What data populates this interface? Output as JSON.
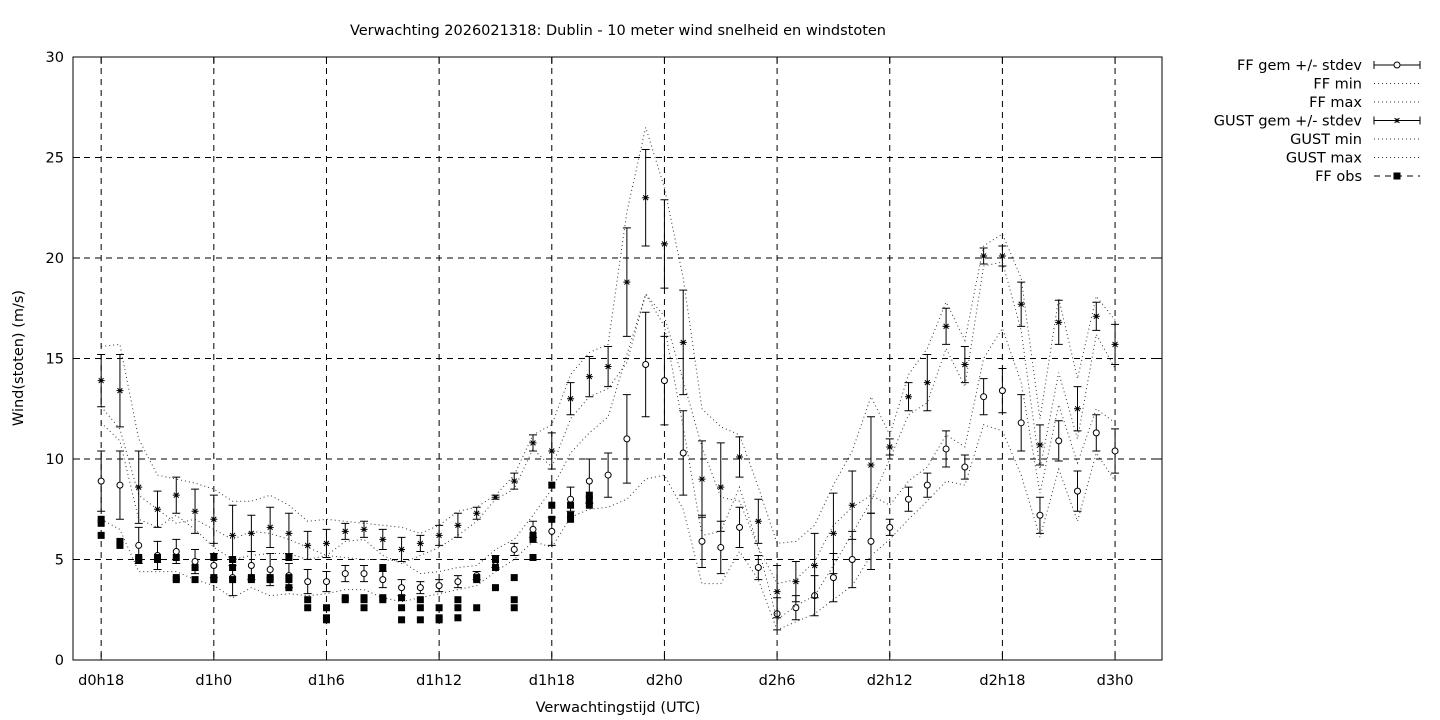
{
  "chart_data": {
    "type": "scatter",
    "title": "Verwachting 2026021318: Dublin - 10 meter wind snelheid en windstoten",
    "xlabel": "Verwachtingstijd (UTC)",
    "ylabel": "Wind(stoten) (m/s)",
    "xlim": [
      -1.5,
      56.5
    ],
    "ylim": [
      0,
      30
    ],
    "yticks": [
      0,
      5,
      10,
      15,
      20,
      25,
      30
    ],
    "xticks": [
      {
        "x": 0,
        "label": "d0h18"
      },
      {
        "x": 6,
        "label": "d1h0"
      },
      {
        "x": 12,
        "label": "d1h6"
      },
      {
        "x": 18,
        "label": "d1h12"
      },
      {
        "x": 24,
        "label": "d1h18"
      },
      {
        "x": 30,
        "label": "d2h0"
      },
      {
        "x": 36,
        "label": "d2h6"
      },
      {
        "x": 42,
        "label": "d2h12"
      },
      {
        "x": 48,
        "label": "d2h18"
      },
      {
        "x": 54,
        "label": "d3h0"
      }
    ],
    "grid": true,
    "legend_position": "outside-right",
    "x_hours": [
      0,
      1,
      2,
      3,
      4,
      5,
      6,
      7,
      8,
      9,
      10,
      11,
      12,
      13,
      14,
      15,
      16,
      17,
      18,
      19,
      20,
      21,
      22,
      23,
      24,
      25,
      26,
      27,
      28,
      29,
      30,
      31,
      32,
      33,
      34,
      35,
      36,
      37,
      38,
      39,
      40,
      41,
      42,
      43,
      44,
      45,
      46,
      47,
      48,
      49,
      50,
      51,
      52,
      53,
      54
    ],
    "series": [
      {
        "name": "FF gem +/- stdev",
        "style": "errorbars-open-circle",
        "mean": [
          8.9,
          8.7,
          5.7,
          5.2,
          5.4,
          4.9,
          4.7,
          4.1,
          4.7,
          4.5,
          4.2,
          3.9,
          3.9,
          4.3,
          4.3,
          4.0,
          3.6,
          3.6,
          3.7,
          3.9,
          4.2,
          4.9,
          5.5,
          6.5,
          6.4,
          8.0,
          8.9,
          9.2,
          11.0,
          14.7,
          13.9,
          10.3,
          5.9,
          5.6,
          6.6,
          4.6,
          2.3,
          2.6,
          3.2,
          4.1,
          5.0,
          5.9,
          6.6,
          8.0,
          8.7,
          10.5,
          9.6,
          13.1,
          13.4,
          11.8,
          7.2,
          10.9,
          8.4,
          11.3,
          10.4
        ],
        "stdev": [
          1.5,
          1.7,
          0.9,
          0.7,
          0.6,
          0.6,
          0.6,
          0.9,
          0.7,
          0.8,
          0.6,
          0.6,
          0.5,
          0.4,
          0.4,
          0.4,
          0.4,
          0.3,
          0.3,
          0.3,
          0.2,
          0.3,
          0.3,
          0.4,
          0.7,
          0.6,
          1.1,
          1.1,
          2.2,
          2.6,
          2.2,
          2.1,
          1.3,
          1.3,
          1.0,
          0.6,
          0.8,
          0.6,
          1.0,
          1.2,
          1.4,
          1.4,
          0.4,
          0.6,
          0.6,
          0.9,
          0.6,
          0.9,
          1.1,
          1.4,
          0.9,
          1.0,
          1.0,
          0.9,
          1.1
        ]
      },
      {
        "name": "FF min",
        "style": "dotted-line",
        "values": [
          7.0,
          6.5,
          4.4,
          4.4,
          4.4,
          4.0,
          3.7,
          3.1,
          3.6,
          3.2,
          3.3,
          3.2,
          3.3,
          3.5,
          3.5,
          3.1,
          2.9,
          3.1,
          3.3,
          3.5,
          3.7,
          4.4,
          5.0,
          5.9,
          5.6,
          7.1,
          7.5,
          7.6,
          8.0,
          9.0,
          9.2,
          7.5,
          3.8,
          3.8,
          5.4,
          4.0,
          1.5,
          1.9,
          2.3,
          3.0,
          3.7,
          5.2,
          6.0,
          7.0,
          7.9,
          8.9,
          8.7,
          11.7,
          11.4,
          9.2,
          6.1,
          9.5,
          6.9,
          10.3,
          8.9
        ]
      },
      {
        "name": "FF max",
        "style": "dotted-line",
        "values": [
          12.6,
          11.5,
          8.2,
          7.5,
          6.8,
          7.0,
          6.5,
          6.0,
          6.4,
          6.3,
          6.0,
          5.6,
          5.2,
          5.1,
          5.0,
          5.0,
          4.9,
          4.3,
          4.4,
          4.6,
          4.7,
          5.5,
          6.0,
          7.2,
          8.5,
          10.3,
          11.3,
          12.1,
          15.2,
          18.2,
          17.1,
          13.9,
          10.6,
          8.1,
          7.9,
          5.6,
          3.8,
          4.0,
          4.9,
          6.7,
          7.6,
          8.2,
          7.7,
          8.9,
          9.6,
          11.2,
          10.6,
          15.0,
          16.5,
          13.8,
          8.3,
          12.7,
          9.8,
          12.5,
          11.8
        ]
      },
      {
        "name": "GUST gem +/- stdev",
        "style": "errorbars-star",
        "mean": [
          13.9,
          13.4,
          8.6,
          7.5,
          8.2,
          7.4,
          7.0,
          6.2,
          6.3,
          6.6,
          6.3,
          5.7,
          5.8,
          6.4,
          6.5,
          6.0,
          5.5,
          5.8,
          6.2,
          6.7,
          7.3,
          8.1,
          8.9,
          10.8,
          10.4,
          13.0,
          14.1,
          14.6,
          18.8,
          23.0,
          20.7,
          15.8,
          9.0,
          8.6,
          10.1,
          6.9,
          3.4,
          3.9,
          4.7,
          6.3,
          7.7,
          9.7,
          10.6,
          13.1,
          13.8,
          16.6,
          14.7,
          20.1,
          20.1,
          17.7,
          10.7,
          16.8,
          12.5,
          17.1,
          15.7
        ],
        "stdev": [
          1.3,
          1.8,
          1.8,
          0.9,
          0.9,
          1.1,
          1.2,
          1.5,
          0.9,
          1.0,
          1.0,
          0.7,
          0.7,
          0.4,
          0.4,
          0.5,
          0.6,
          0.4,
          0.5,
          0.6,
          0.3,
          0.1,
          0.4,
          0.4,
          0.9,
          0.8,
          1.0,
          1.0,
          2.7,
          2.4,
          2.2,
          2.6,
          1.9,
          2.2,
          1.0,
          1.1,
          1.3,
          1.0,
          1.6,
          2.0,
          1.7,
          2.4,
          0.4,
          0.7,
          1.4,
          0.9,
          0.9,
          0.4,
          0.5,
          1.1,
          1.0,
          1.1,
          1.1,
          0.7,
          1.0
        ]
      },
      {
        "name": "GUST min",
        "style": "dotted-line",
        "values": [
          11.8,
          10.9,
          7.0,
          6.6,
          7.2,
          6.5,
          5.6,
          5.0,
          5.2,
          5.3,
          5.3,
          5.0,
          5.2,
          5.9,
          6.0,
          5.2,
          4.8,
          5.2,
          5.6,
          6.2,
          6.9,
          8.0,
          8.5,
          10.5,
          9.6,
          12.0,
          13.1,
          13.5,
          14.8,
          18.2,
          16.6,
          11.6,
          6.2,
          6.4,
          8.6,
          5.6,
          2.0,
          2.7,
          3.2,
          4.7,
          6.3,
          7.9,
          10.0,
          12.2,
          12.8,
          15.5,
          13.6,
          19.6,
          19.8,
          16.4,
          9.5,
          14.3,
          11.0,
          16.2,
          14.5
        ]
      },
      {
        "name": "GUST max",
        "style": "dotted-line",
        "values": [
          15.6,
          15.7,
          11.0,
          9.2,
          9.0,
          8.8,
          8.5,
          7.9,
          7.9,
          8.2,
          7.7,
          6.9,
          7.0,
          6.9,
          6.8,
          6.7,
          6.6,
          6.3,
          6.7,
          7.4,
          7.6,
          8.2,
          9.2,
          11.2,
          11.7,
          14.2,
          15.3,
          15.7,
          22.3,
          26.5,
          23.5,
          19.0,
          12.5,
          11.6,
          11.2,
          8.6,
          5.8,
          5.9,
          6.7,
          8.7,
          10.4,
          13.1,
          11.2,
          14.2,
          15.5,
          17.8,
          15.9,
          20.6,
          21.2,
          19.0,
          12.0,
          18.0,
          14.0,
          18.1,
          16.9
        ]
      },
      {
        "name": "FF obs",
        "style": "filled-squares",
        "points": [
          [
            0,
            6.2
          ],
          [
            0,
            6.8
          ],
          [
            0,
            7.0
          ],
          [
            1,
            5.7
          ],
          [
            1,
            5.9
          ],
          [
            2,
            5.0
          ],
          [
            2,
            5.1
          ],
          [
            3,
            5.0
          ],
          [
            3,
            5.1
          ],
          [
            4,
            4.0
          ],
          [
            4,
            4.1
          ],
          [
            4,
            5.1
          ],
          [
            5,
            4.0
          ],
          [
            5,
            4.6
          ],
          [
            6,
            4.0
          ],
          [
            6,
            4.1
          ],
          [
            6,
            5.1
          ],
          [
            7,
            4.0
          ],
          [
            7,
            4.6
          ],
          [
            7,
            5.0
          ],
          [
            8,
            4.0
          ],
          [
            8,
            4.1
          ],
          [
            9,
            4.0
          ],
          [
            9,
            4.1
          ],
          [
            10,
            3.6
          ],
          [
            10,
            4.0
          ],
          [
            10,
            4.1
          ],
          [
            10,
            5.1
          ],
          [
            11,
            2.6
          ],
          [
            11,
            3.0
          ],
          [
            12,
            2.0
          ],
          [
            12,
            2.1
          ],
          [
            12,
            2.6
          ],
          [
            13,
            3.0
          ],
          [
            13,
            3.1
          ],
          [
            14,
            2.6
          ],
          [
            14,
            3.0
          ],
          [
            14,
            3.1
          ],
          [
            15,
            3.0
          ],
          [
            15,
            3.1
          ],
          [
            15,
            4.6
          ],
          [
            16,
            2.0
          ],
          [
            16,
            2.6
          ],
          [
            16,
            3.1
          ],
          [
            17,
            2.0
          ],
          [
            17,
            2.6
          ],
          [
            17,
            3.0
          ],
          [
            18,
            2.0
          ],
          [
            18,
            2.1
          ],
          [
            18,
            2.6
          ],
          [
            19,
            2.1
          ],
          [
            19,
            2.6
          ],
          [
            19,
            3.0
          ],
          [
            20,
            2.6
          ],
          [
            20,
            4.0
          ],
          [
            20,
            4.1
          ],
          [
            21,
            3.6
          ],
          [
            21,
            4.6
          ],
          [
            21,
            5.0
          ],
          [
            22,
            2.6
          ],
          [
            22,
            3.0
          ],
          [
            22,
            4.1
          ],
          [
            23,
            5.1
          ],
          [
            23,
            6.0
          ],
          [
            23,
            6.2
          ],
          [
            24,
            7.0
          ],
          [
            24,
            7.7
          ],
          [
            24,
            8.7
          ],
          [
            25,
            7.0
          ],
          [
            25,
            7.2
          ],
          [
            25,
            7.7
          ],
          [
            26,
            7.7
          ],
          [
            26,
            8.0
          ],
          [
            26,
            8.2
          ]
        ]
      }
    ]
  }
}
